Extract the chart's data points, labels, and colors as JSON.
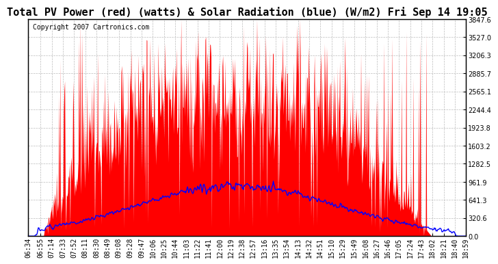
{
  "title": "Total PV Power (red) (watts) & Solar Radiation (blue) (W/m2) Fri Sep 14 19:05",
  "copyright": "Copyright 2007 Cartronics.com",
  "background_color": "#ffffff",
  "plot_bg_color": "#ffffff",
  "grid_color": "#bbbbbb",
  "pv_color": "red",
  "solar_color": "blue",
  "yticks": [
    0.0,
    320.6,
    641.3,
    961.9,
    1282.5,
    1603.2,
    1923.8,
    2244.4,
    2565.1,
    2885.7,
    3206.3,
    3527.0,
    3847.6
  ],
  "ymax": 3847.6,
  "ymin": 0.0,
  "title_fontsize": 11,
  "copyright_fontsize": 7,
  "tick_fontsize": 7,
  "xtick_labels": [
    "06:34",
    "06:55",
    "07:14",
    "07:33",
    "07:52",
    "08:11",
    "08:30",
    "08:49",
    "09:08",
    "09:28",
    "09:47",
    "10:06",
    "10:25",
    "10:44",
    "11:03",
    "11:22",
    "11:41",
    "12:00",
    "12:19",
    "12:38",
    "12:57",
    "13:16",
    "13:35",
    "13:54",
    "14:13",
    "14:32",
    "14:51",
    "15:10",
    "15:29",
    "15:49",
    "16:08",
    "16:27",
    "16:46",
    "17:05",
    "17:24",
    "17:43",
    "18:02",
    "18:21",
    "18:40",
    "18:59"
  ]
}
